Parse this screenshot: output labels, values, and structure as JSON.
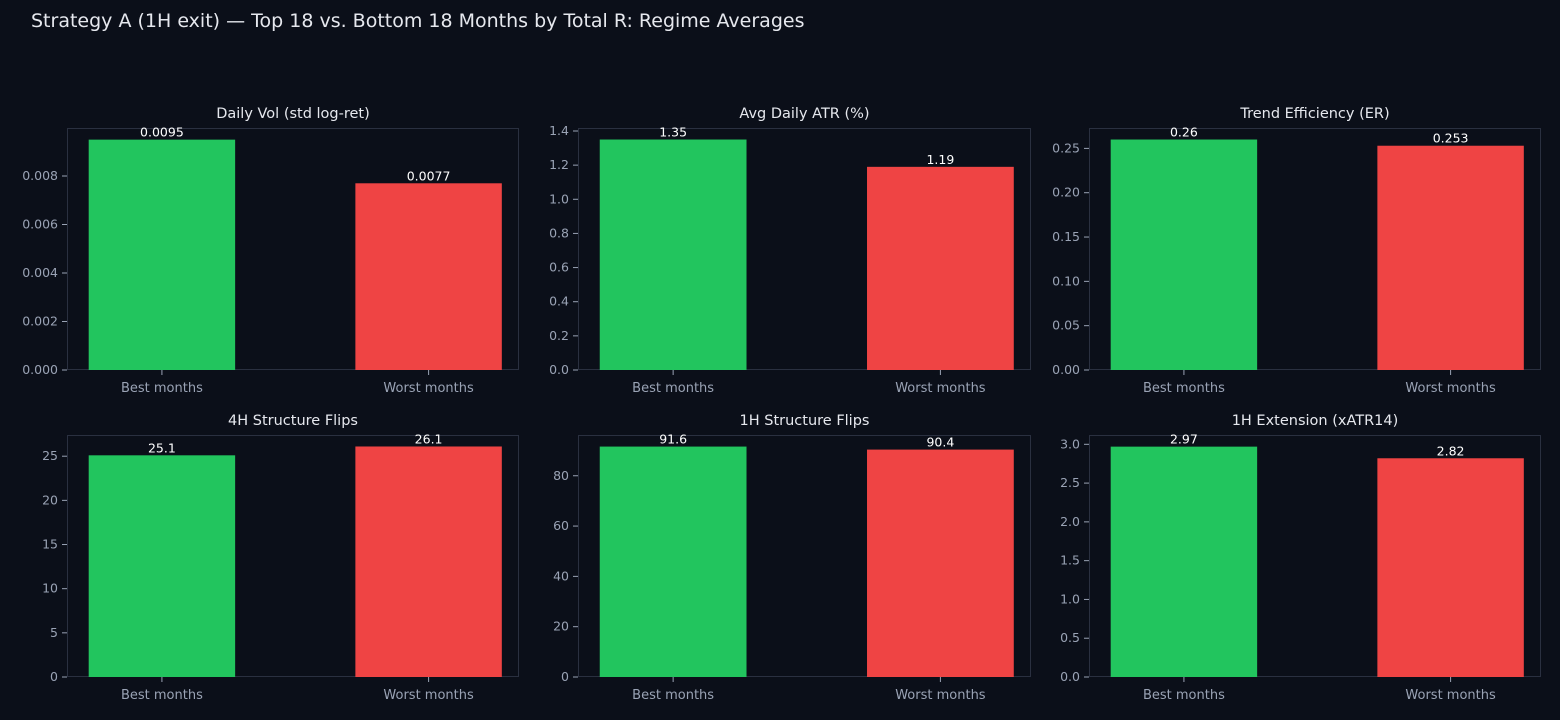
{
  "suptitle": "Strategy A (1H exit) — Top 18 vs. Bottom 18 Months by Total R: Regime Averages",
  "colors": {
    "background": "#0b0f19",
    "best": "#22c55e",
    "worst": "#ef4444",
    "axis_text": "#9aa3b5",
    "title_text": "#e6e8ee",
    "frame": "#2a3040"
  },
  "chart_data": [
    {
      "type": "bar",
      "title": "Daily Vol (std log-ret)",
      "categories": [
        "Best months",
        "Worst months"
      ],
      "values": [
        0.0095,
        0.0077
      ],
      "value_labels": [
        "0.0095",
        "0.0077"
      ],
      "ylim": [
        0,
        0.00998
      ],
      "yticks": [
        0,
        0.002,
        0.004,
        0.006,
        0.008
      ],
      "ytick_labels": [
        "0.000",
        "0.002",
        "0.004",
        "0.006",
        "0.008"
      ],
      "grid": false
    },
    {
      "type": "bar",
      "title": "Avg Daily ATR (%)",
      "categories": [
        "Best months",
        "Worst months"
      ],
      "values": [
        1.35,
        1.19
      ],
      "value_labels": [
        "1.35",
        "1.19"
      ],
      "ylim": [
        0,
        1.4175
      ],
      "yticks": [
        0,
        0.2,
        0.4,
        0.6,
        0.8,
        1.0,
        1.2,
        1.4
      ],
      "ytick_labels": [
        "0.0",
        "0.2",
        "0.4",
        "0.6",
        "0.8",
        "1.0",
        "1.2",
        "1.4"
      ],
      "grid": false
    },
    {
      "type": "bar",
      "title": "Trend Efficiency (ER)",
      "categories": [
        "Best months",
        "Worst months"
      ],
      "values": [
        0.26,
        0.253
      ],
      "value_labels": [
        "0.26",
        "0.253"
      ],
      "ylim": [
        0,
        0.273
      ],
      "yticks": [
        0,
        0.05,
        0.1,
        0.15,
        0.2,
        0.25
      ],
      "ytick_labels": [
        "0.00",
        "0.05",
        "0.10",
        "0.15",
        "0.20",
        "0.25"
      ],
      "grid": false
    },
    {
      "type": "bar",
      "title": "4H Structure Flips",
      "categories": [
        "Best months",
        "Worst months"
      ],
      "values": [
        25.1,
        26.1
      ],
      "value_labels": [
        "25.1",
        "26.1"
      ],
      "ylim": [
        0,
        27.4
      ],
      "yticks": [
        0,
        5,
        10,
        15,
        20,
        25
      ],
      "ytick_labels": [
        "0",
        "5",
        "10",
        "15",
        "20",
        "25"
      ],
      "grid": false
    },
    {
      "type": "bar",
      "title": "1H Structure Flips",
      "categories": [
        "Best months",
        "Worst months"
      ],
      "values": [
        91.6,
        90.4
      ],
      "value_labels": [
        "91.6",
        "90.4"
      ],
      "ylim": [
        0,
        96.2
      ],
      "yticks": [
        0,
        20,
        40,
        60,
        80
      ],
      "ytick_labels": [
        "0",
        "20",
        "40",
        "60",
        "80"
      ],
      "grid": false
    },
    {
      "type": "bar",
      "title": "1H Extension (xATR14)",
      "categories": [
        "Best months",
        "Worst months"
      ],
      "values": [
        2.97,
        2.82
      ],
      "value_labels": [
        "2.97",
        "2.82"
      ],
      "ylim": [
        0,
        3.12
      ],
      "yticks": [
        0,
        0.5,
        1.0,
        1.5,
        2.0,
        2.5,
        3.0
      ],
      "ytick_labels": [
        "0.0",
        "0.5",
        "1.0",
        "1.5",
        "2.0",
        "2.5",
        "3.0"
      ],
      "grid": false
    }
  ]
}
